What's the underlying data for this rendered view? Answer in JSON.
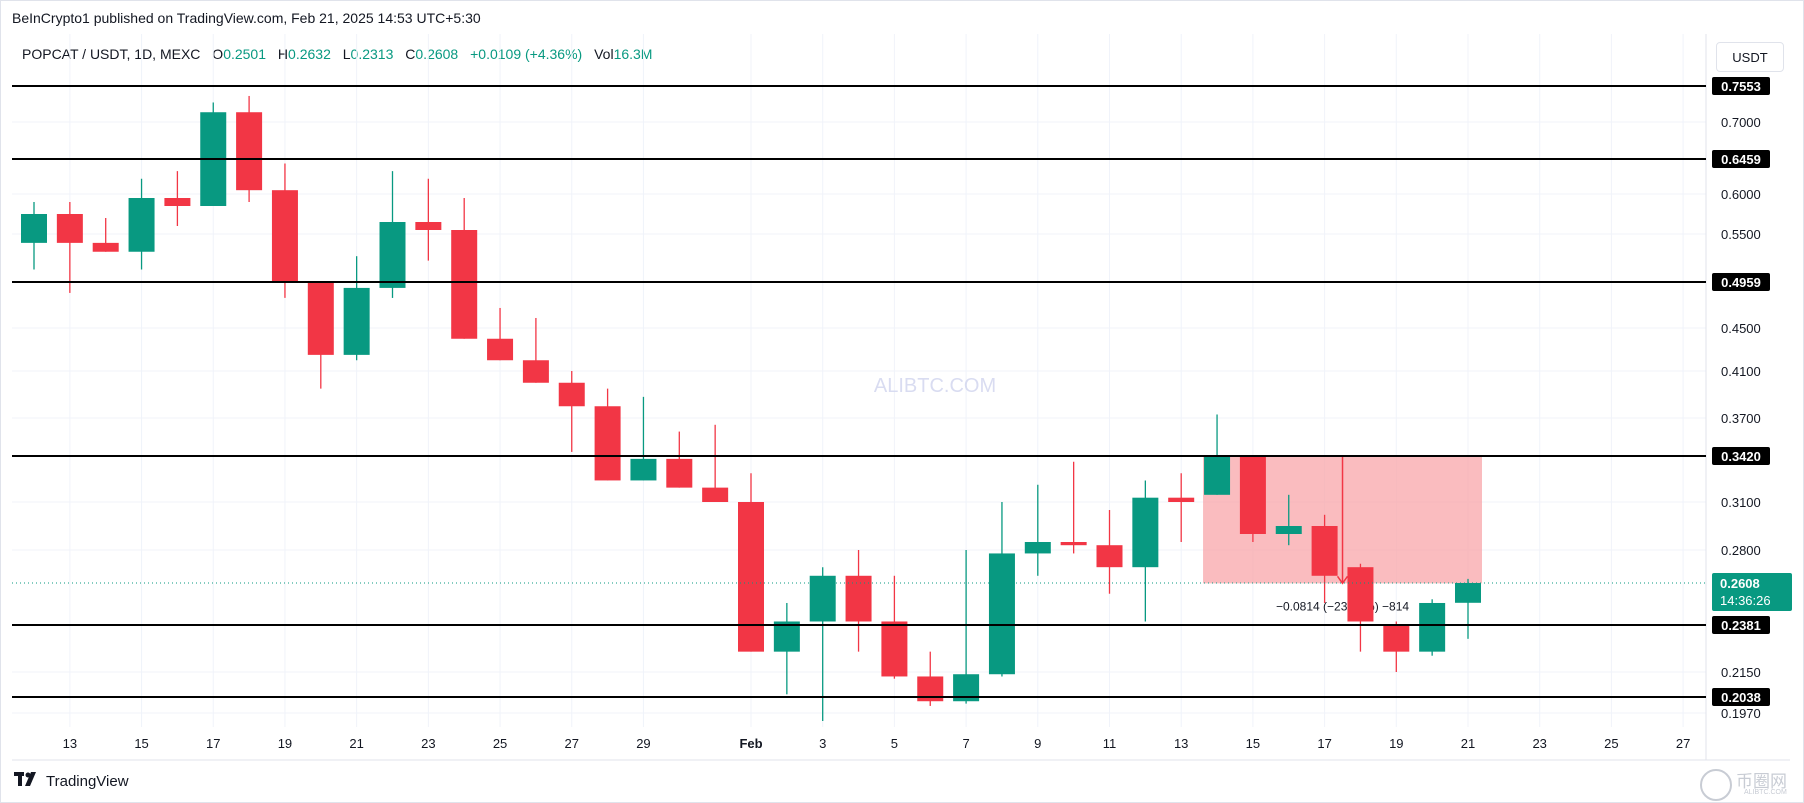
{
  "header": {
    "publisher": "BeInCrypto1 published on TradingView.com, Feb 21, 2025 14:53 UTC+5:30",
    "symbol": "POPCAT / USDT, 1D, MEXC",
    "o_label": "O",
    "o_value": "0.2501",
    "h_label": "H",
    "h_value": "0.2632",
    "l_label": "L",
    "l_value": "0.2313",
    "c_label": "C",
    "c_value": "0.2608",
    "change": "+0.0109 (+4.36%)",
    "vol_label": "Vol",
    "vol_value": "16.3M",
    "currency": "USDT"
  },
  "footer": {
    "brand": "TradingView"
  },
  "watermark": {
    "center": "ALIBTC.COM",
    "corner": "币圈网",
    "corner_sub": "ALIBTC.COM"
  },
  "colors": {
    "up": "#089981",
    "down": "#f23645",
    "line": "#000000",
    "grid": "#f0f3fa",
    "zone": "#f8a5aa"
  },
  "chart_data": {
    "type": "candlestick",
    "x_tick_labels": [
      "13",
      "15",
      "17",
      "19",
      "21",
      "23",
      "25",
      "27",
      "29",
      "Feb",
      "3",
      "5",
      "7",
      "9",
      "11",
      "13",
      "15",
      "17",
      "19",
      "21",
      "23",
      "25",
      "27"
    ],
    "y_tick_labels": [
      "0.7000",
      "0.6000",
      "0.5500",
      "0.4500",
      "0.4100",
      "0.3700",
      "0.3100",
      "0.2800",
      "0.2150",
      "0.1970"
    ],
    "ylim": [
      0.19,
      0.78
    ],
    "candles": [
      {
        "date": "Jan 12",
        "o": 0.54,
        "h": 0.59,
        "l": 0.51,
        "c": 0.575
      },
      {
        "date": "Jan 13",
        "o": 0.575,
        "h": 0.59,
        "l": 0.485,
        "c": 0.54
      },
      {
        "date": "Jan 14",
        "o": 0.54,
        "h": 0.57,
        "l": 0.53,
        "c": 0.53
      },
      {
        "date": "Jan 15",
        "o": 0.53,
        "h": 0.62,
        "l": 0.51,
        "c": 0.595
      },
      {
        "date": "Jan 16",
        "o": 0.595,
        "h": 0.63,
        "l": 0.56,
        "c": 0.585
      },
      {
        "date": "Jan 17",
        "o": 0.585,
        "h": 0.73,
        "l": 0.585,
        "c": 0.715
      },
      {
        "date": "Jan 18",
        "o": 0.715,
        "h": 0.74,
        "l": 0.59,
        "c": 0.605
      },
      {
        "date": "Jan 19",
        "o": 0.605,
        "h": 0.64,
        "l": 0.48,
        "c": 0.495
      },
      {
        "date": "Jan 20",
        "o": 0.495,
        "h": 0.495,
        "l": 0.395,
        "c": 0.425
      },
      {
        "date": "Jan 21",
        "o": 0.425,
        "h": 0.525,
        "l": 0.42,
        "c": 0.49
      },
      {
        "date": "Jan 22",
        "o": 0.49,
        "h": 0.63,
        "l": 0.48,
        "c": 0.565
      },
      {
        "date": "Jan 23",
        "o": 0.565,
        "h": 0.62,
        "l": 0.52,
        "c": 0.555
      },
      {
        "date": "Jan 24",
        "o": 0.555,
        "h": 0.595,
        "l": 0.44,
        "c": 0.44
      },
      {
        "date": "Jan 25",
        "o": 0.44,
        "h": 0.47,
        "l": 0.42,
        "c": 0.42
      },
      {
        "date": "Jan 26",
        "o": 0.42,
        "h": 0.46,
        "l": 0.4,
        "c": 0.4
      },
      {
        "date": "Jan 27",
        "o": 0.4,
        "h": 0.41,
        "l": 0.345,
        "c": 0.38
      },
      {
        "date": "Jan 28",
        "o": 0.38,
        "h": 0.395,
        "l": 0.325,
        "c": 0.325
      },
      {
        "date": "Jan 29",
        "o": 0.325,
        "h": 0.388,
        "l": 0.325,
        "c": 0.34
      },
      {
        "date": "Jan 30",
        "o": 0.34,
        "h": 0.36,
        "l": 0.32,
        "c": 0.32
      },
      {
        "date": "Jan 31",
        "o": 0.32,
        "h": 0.365,
        "l": 0.31,
        "c": 0.31
      },
      {
        "date": "Feb 1",
        "o": 0.31,
        "h": 0.33,
        "l": 0.225,
        "c": 0.225
      },
      {
        "date": "Feb 2",
        "o": 0.225,
        "h": 0.25,
        "l": 0.205,
        "c": 0.24
      },
      {
        "date": "Feb 3",
        "o": 0.24,
        "h": 0.27,
        "l": 0.193,
        "c": 0.265
      },
      {
        "date": "Feb 4",
        "o": 0.265,
        "h": 0.28,
        "l": 0.225,
        "c": 0.24
      },
      {
        "date": "Feb 5",
        "o": 0.24,
        "h": 0.265,
        "l": 0.212,
        "c": 0.213
      },
      {
        "date": "Feb 6",
        "o": 0.213,
        "h": 0.225,
        "l": 0.2,
        "c": 0.202
      },
      {
        "date": "Feb 7",
        "o": 0.202,
        "h": 0.28,
        "l": 0.201,
        "c": 0.214
      },
      {
        "date": "Feb 8",
        "o": 0.214,
        "h": 0.31,
        "l": 0.213,
        "c": 0.278
      },
      {
        "date": "Feb 9",
        "o": 0.278,
        "h": 0.322,
        "l": 0.265,
        "c": 0.285
      },
      {
        "date": "Feb 10",
        "o": 0.285,
        "h": 0.338,
        "l": 0.278,
        "c": 0.283
      },
      {
        "date": "Feb 11",
        "o": 0.283,
        "h": 0.305,
        "l": 0.255,
        "c": 0.27
      },
      {
        "date": "Feb 12",
        "o": 0.27,
        "h": 0.325,
        "l": 0.24,
        "c": 0.313
      },
      {
        "date": "Feb 13",
        "o": 0.313,
        "h": 0.33,
        "l": 0.285,
        "c": 0.31
      },
      {
        "date": "Feb 14",
        "o": 0.315,
        "h": 0.373,
        "l": 0.315,
        "c": 0.342
      },
      {
        "date": "Feb 15",
        "o": 0.342,
        "h": 0.342,
        "l": 0.285,
        "c": 0.29
      },
      {
        "date": "Feb 16",
        "o": 0.29,
        "h": 0.315,
        "l": 0.283,
        "c": 0.295
      },
      {
        "date": "Feb 17",
        "o": 0.295,
        "h": 0.302,
        "l": 0.25,
        "c": 0.265
      },
      {
        "date": "Feb 18",
        "o": 0.27,
        "h": 0.272,
        "l": 0.225,
        "c": 0.24
      },
      {
        "date": "Feb 19",
        "o": 0.238,
        "h": 0.24,
        "l": 0.215,
        "c": 0.225
      },
      {
        "date": "Feb 20",
        "o": 0.225,
        "h": 0.252,
        "l": 0.223,
        "c": 0.25
      },
      {
        "date": "Feb 21",
        "o": 0.2501,
        "h": 0.2632,
        "l": 0.2313,
        "c": 0.2608
      }
    ],
    "horizontal_levels": [
      {
        "price": 0.7553,
        "label": "0.7553"
      },
      {
        "price": 0.6459,
        "label": "0.6459"
      },
      {
        "price": 0.4959,
        "label": "0.4959"
      },
      {
        "price": 0.342,
        "label": "0.3420"
      },
      {
        "price": 0.2381,
        "label": "0.2381"
      },
      {
        "price": 0.2038,
        "label": "0.2038"
      }
    ],
    "current_price": {
      "label": "0.2608",
      "countdown": "14:36:26",
      "price": 0.2608
    },
    "measure_zone": {
      "from_date": "Feb 14",
      "to_date": "Feb 21",
      "top": 0.342,
      "bottom": 0.2606,
      "label": "−0.0814 (−23.80%) −814"
    }
  }
}
